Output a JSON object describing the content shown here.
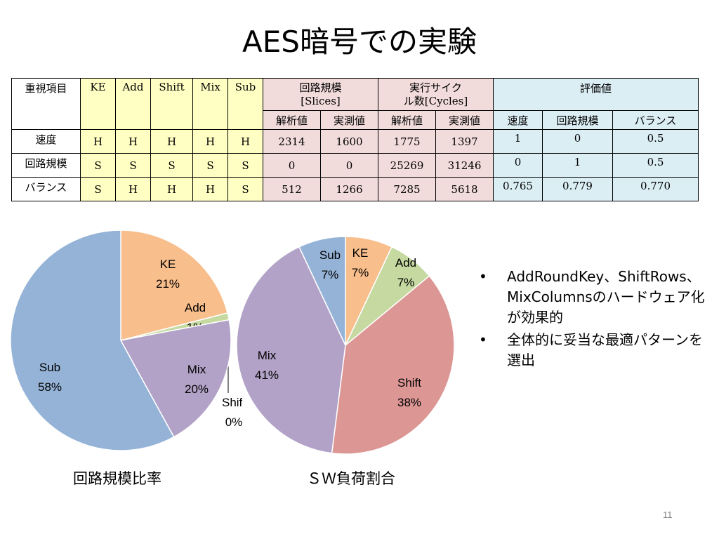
{
  "title": "AES暗号での実験",
  "table": {
    "h_item": "重視項目",
    "cols": [
      "KE",
      "Add",
      "Shift",
      "Mix",
      "Sub"
    ],
    "h_circuit": "回路規模",
    "h_circuit_unit": "[Slices]",
    "h_cycles_1": "実行サイク",
    "h_cycles_2": "ル数[Cycles]",
    "h_eval": "評価値",
    "sub_analytic": "解析値",
    "sub_measured": "実測値",
    "sub_speed": "速度",
    "sub_circuit": "回路規模",
    "sub_balance": "バランス",
    "rows": [
      {
        "label": "速度",
        "flags": [
          "H",
          "H",
          "H",
          "H",
          "H"
        ],
        "slices_a": "2314",
        "slices_m": "1600",
        "cycles_a": "1775",
        "cycles_m": "1397",
        "e_speed": "1",
        "e_circuit": "0",
        "e_balance": "0.5"
      },
      {
        "label": "回路規模",
        "flags": [
          "S",
          "S",
          "S",
          "S",
          "S"
        ],
        "slices_a": "0",
        "slices_m": "0",
        "cycles_a": "25269",
        "cycles_m": "31246",
        "e_speed": "0",
        "e_circuit": "1",
        "e_balance": "0.5"
      },
      {
        "label": "バランス",
        "flags": [
          "S",
          "H",
          "H",
          "H",
          "S"
        ],
        "slices_a": "512",
        "slices_m": "1266",
        "cycles_a": "7285",
        "cycles_m": "5618",
        "e_speed": "0.765",
        "e_circuit": "0.779",
        "e_balance": "0.770"
      }
    ]
  },
  "chart_data": [
    {
      "type": "pie",
      "title": "回路規模比率",
      "slices": [
        {
          "name": "KE",
          "value": 21,
          "label": "21%",
          "color": "#f8be8c"
        },
        {
          "name": "Add",
          "value": 1,
          "label": "1%",
          "color": "#c5d9a0"
        },
        {
          "name": "Shift",
          "value": 0,
          "label": "0%",
          "color": "#dc9694"
        },
        {
          "name": "Mix",
          "value": 20,
          "label": "20%",
          "color": "#b2a2c7"
        },
        {
          "name": "Sub",
          "value": 58,
          "label": "58%",
          "color": "#95b3d7"
        }
      ]
    },
    {
      "type": "pie",
      "title": "ＳＷ負荷割合",
      "slices": [
        {
          "name": "KE",
          "value": 7,
          "label": "7%",
          "color": "#f8be8c"
        },
        {
          "name": "Add",
          "value": 7,
          "label": "7%",
          "color": "#c5d9a0"
        },
        {
          "name": "Shift",
          "value": 38,
          "label": "38%",
          "color": "#dc9694"
        },
        {
          "name": "Mix",
          "value": 41,
          "label": "41%",
          "color": "#b2a2c7"
        },
        {
          "name": "Sub",
          "value": 7,
          "label": "7%",
          "color": "#95b3d7"
        }
      ]
    }
  ],
  "bullets": [
    {
      "mark": "•",
      "text": "AddRoundKey、ShiftRows、MixColumnsのハードウェア化が効果的"
    },
    {
      "mark": "•",
      "text": "全体的に妥当な最適パターンを選出"
    }
  ],
  "page_number": "11"
}
